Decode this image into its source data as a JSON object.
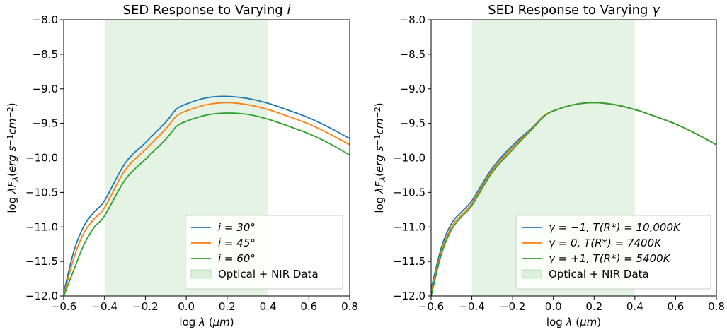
{
  "chart_data": [
    {
      "type": "line",
      "title": "SED Response to Varying i",
      "title_parts": {
        "prefix": "SED Response to Varying ",
        "symbol": "i"
      },
      "xlabel": "log λ (μm)",
      "ylabel": "log λF_λ(erg s⁻¹cm⁻²)",
      "xlim": [
        -0.6,
        0.8
      ],
      "ylim": [
        -12.0,
        -8.0
      ],
      "x_ticks": [
        "−0.6",
        "−0.4",
        "−0.2",
        "0.0",
        "0.2",
        "0.4",
        "0.6",
        "0.8"
      ],
      "y_ticks": [
        "−12.0",
        "−11.5",
        "−11.0",
        "−10.5",
        "−10.0",
        "−9.5",
        "−9.0",
        "−8.5",
        "−8.0"
      ],
      "x_tick_values": [
        -0.6,
        -0.4,
        -0.2,
        0.0,
        0.2,
        0.4,
        0.6,
        0.8
      ],
      "y_tick_values": [
        -12.0,
        -11.5,
        -11.0,
        -10.5,
        -10.0,
        -9.5,
        -9.0,
        -8.5,
        -8.0
      ],
      "shaded_region": {
        "x": [
          -0.4,
          0.4
        ],
        "label": "Optical + NIR Data",
        "color": "#2ca02c"
      },
      "legend_position": "lower-right",
      "x": [
        -0.6,
        -0.55,
        -0.5,
        -0.45,
        -0.4,
        -0.3,
        -0.2,
        -0.1,
        -0.05,
        0.0,
        0.1,
        0.2,
        0.3,
        0.4,
        0.5,
        0.6,
        0.7,
        0.8
      ],
      "series": [
        {
          "name": "i = 30°",
          "color": "#1f77b4",
          "values": [
            -11.95,
            -11.35,
            -10.98,
            -10.78,
            -10.62,
            -10.08,
            -9.78,
            -9.48,
            -9.3,
            -9.22,
            -9.13,
            -9.11,
            -9.14,
            -9.21,
            -9.31,
            -9.42,
            -9.56,
            -9.72
          ]
        },
        {
          "name": "i = 45°",
          "color": "#ff7f0e",
          "values": [
            -12.0,
            -11.45,
            -11.08,
            -10.88,
            -10.72,
            -10.18,
            -9.88,
            -9.58,
            -9.4,
            -9.32,
            -9.23,
            -9.2,
            -9.23,
            -9.3,
            -9.4,
            -9.51,
            -9.65,
            -9.81
          ]
        },
        {
          "name": "i = 60°",
          "color": "#2ca02c",
          "values": [
            -12.0,
            -11.62,
            -11.25,
            -11.0,
            -10.84,
            -10.32,
            -10.02,
            -9.73,
            -9.55,
            -9.47,
            -9.38,
            -9.35,
            -9.37,
            -9.44,
            -9.54,
            -9.65,
            -9.79,
            -9.96
          ]
        }
      ]
    },
    {
      "type": "line",
      "title": "SED Response to Varying γ",
      "title_parts": {
        "prefix": "SED Response to Varying ",
        "symbol": "γ"
      },
      "xlabel": "log λ (μm)",
      "ylabel": "log λF_λ(erg s⁻¹cm⁻²)",
      "xlim": [
        -0.6,
        0.8
      ],
      "ylim": [
        -12.0,
        -8.0
      ],
      "x_ticks": [
        "−0.6",
        "−0.4",
        "−0.2",
        "0.0",
        "0.2",
        "0.4",
        "0.6",
        "0.8"
      ],
      "y_ticks": [
        "−12.0",
        "−11.5",
        "−11.0",
        "−10.5",
        "−10.0",
        "−9.5",
        "−9.0",
        "−8.5",
        "−8.0"
      ],
      "x_tick_values": [
        -0.6,
        -0.4,
        -0.2,
        0.0,
        0.2,
        0.4,
        0.6,
        0.8
      ],
      "y_tick_values": [
        -12.0,
        -11.5,
        -11.0,
        -10.5,
        -10.0,
        -9.5,
        -9.0,
        -8.5,
        -8.0
      ],
      "shaded_region": {
        "x": [
          -0.4,
          0.4
        ],
        "label": "Optical + NIR Data",
        "color": "#2ca02c"
      },
      "legend_position": "lower-right",
      "x": [
        -0.6,
        -0.55,
        -0.5,
        -0.45,
        -0.4,
        -0.3,
        -0.2,
        -0.1,
        -0.05,
        0.0,
        0.1,
        0.2,
        0.3,
        0.4,
        0.5,
        0.6,
        0.7,
        0.8
      ],
      "series": [
        {
          "name": "γ = −1, T(R*) = 10,000K",
          "color": "#1f77b4",
          "values": [
            -11.9,
            -11.3,
            -10.95,
            -10.78,
            -10.62,
            -10.15,
            -9.82,
            -9.55,
            -9.4,
            -9.32,
            -9.23,
            -9.2,
            -9.23,
            -9.3,
            -9.4,
            -9.51,
            -9.65,
            -9.81
          ]
        },
        {
          "name": "γ = 0, T(R*) = 7400K",
          "color": "#ff7f0e",
          "values": [
            -11.95,
            -11.36,
            -11.0,
            -10.82,
            -10.66,
            -10.18,
            -9.85,
            -9.56,
            -9.4,
            -9.32,
            -9.23,
            -9.2,
            -9.23,
            -9.3,
            -9.4,
            -9.51,
            -9.65,
            -9.81
          ]
        },
        {
          "name": "γ = +1, T(R*) = 5400K",
          "color": "#2ca02c",
          "values": [
            -12.0,
            -11.4,
            -11.04,
            -10.85,
            -10.69,
            -10.21,
            -9.88,
            -9.57,
            -9.41,
            -9.32,
            -9.23,
            -9.2,
            -9.23,
            -9.3,
            -9.4,
            -9.51,
            -9.65,
            -9.81
          ]
        }
      ]
    }
  ]
}
